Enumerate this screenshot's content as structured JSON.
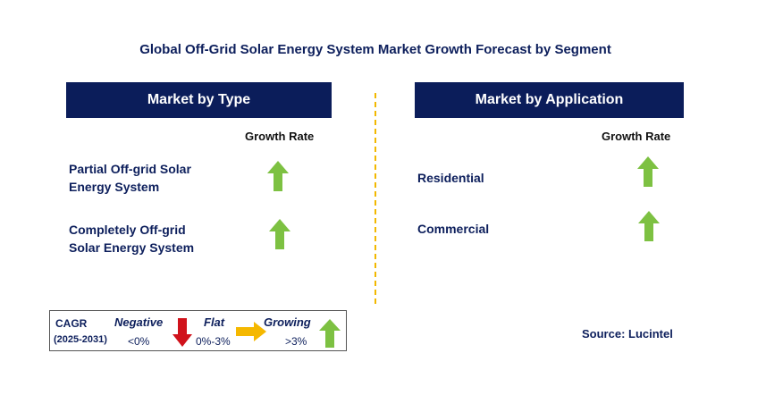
{
  "title": "Global Off-Grid Solar Energy System Market Growth Forecast by Segment",
  "left_panel": {
    "header": "Market by Type",
    "growth_rate_label": "Growth Rate",
    "segments": [
      {
        "line1": "Partial Off-grid Solar",
        "line2": "Energy System",
        "trend": "growing"
      },
      {
        "line1": "Completely Off-grid",
        "line2": "Solar Energy System",
        "trend": "growing"
      }
    ]
  },
  "right_panel": {
    "header": "Market by Application",
    "growth_rate_label": "Growth Rate",
    "segments": [
      {
        "label": "Residential",
        "trend": "growing"
      },
      {
        "label": "Commercial",
        "trend": "growing"
      }
    ]
  },
  "legend": {
    "cagr_label": "CAGR",
    "period": "(2025-2031)",
    "negative_label": "Negative",
    "negative_range": "<0%",
    "flat_label": "Flat",
    "flat_range": "0%-3%",
    "growing_label": "Growing",
    "growing_range": ">3%"
  },
  "source": "Source: Lucintel",
  "colors": {
    "header_bg": "#0b1d5a",
    "growing": "#7dc142",
    "negative": "#d0121b",
    "flat": "#f5b800",
    "divider": "#f2b800"
  }
}
